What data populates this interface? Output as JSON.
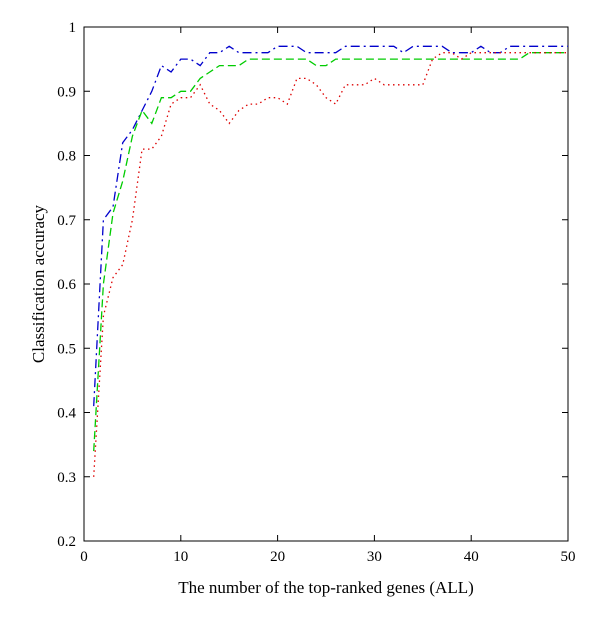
{
  "chart_data": {
    "type": "line",
    "title": "",
    "xlabel": "The number of the top-ranked genes (ALL)",
    "ylabel": "Classification accuracy",
    "xlim": [
      0,
      50
    ],
    "ylim": [
      0.2,
      1.0
    ],
    "xticks": [
      0,
      10,
      20,
      30,
      40,
      50
    ],
    "yticks": [
      0.2,
      0.3,
      0.4,
      0.5,
      0.6,
      0.7,
      0.8,
      0.9,
      1.0
    ],
    "xtick_labels": [
      "0",
      "10",
      "20",
      "30",
      "40",
      "50"
    ],
    "ytick_labels": [
      "0.2",
      "0.3",
      "0.4",
      "0.5",
      "0.6",
      "0.7",
      "0.8",
      "0.9",
      "1"
    ],
    "grid": false,
    "legend": "none",
    "series": [
      {
        "color": "#0000cc",
        "dash": "dash-dot",
        "x": [
          1,
          2,
          3,
          4,
          5,
          6,
          7,
          8,
          9,
          10,
          11,
          12,
          13,
          14,
          15,
          16,
          17,
          18,
          19,
          20,
          21,
          22,
          23,
          24,
          25,
          26,
          27,
          28,
          29,
          30,
          31,
          32,
          33,
          34,
          35,
          36,
          37,
          38,
          39,
          40,
          41,
          42,
          43,
          44,
          45,
          46,
          47,
          48,
          49,
          50
        ],
        "y": [
          0.41,
          0.7,
          0.72,
          0.82,
          0.84,
          0.87,
          0.9,
          0.94,
          0.93,
          0.95,
          0.95,
          0.94,
          0.96,
          0.96,
          0.97,
          0.96,
          0.96,
          0.96,
          0.96,
          0.97,
          0.97,
          0.97,
          0.96,
          0.96,
          0.96,
          0.96,
          0.97,
          0.97,
          0.97,
          0.97,
          0.97,
          0.97,
          0.96,
          0.97,
          0.97,
          0.97,
          0.97,
          0.96,
          0.96,
          0.96,
          0.97,
          0.96,
          0.96,
          0.97,
          0.97,
          0.97,
          0.97,
          0.97,
          0.97,
          0.97
        ]
      },
      {
        "color": "#00cc00",
        "dash": "dashed",
        "x": [
          1,
          2,
          3,
          4,
          5,
          6,
          7,
          8,
          9,
          10,
          11,
          12,
          13,
          14,
          15,
          16,
          17,
          18,
          19,
          20,
          21,
          22,
          23,
          24,
          25,
          26,
          27,
          28,
          29,
          30,
          31,
          32,
          33,
          34,
          35,
          36,
          37,
          38,
          39,
          40,
          41,
          42,
          43,
          44,
          45,
          46,
          47,
          48,
          49,
          50
        ],
        "y": [
          0.34,
          0.6,
          0.71,
          0.76,
          0.83,
          0.87,
          0.85,
          0.89,
          0.89,
          0.9,
          0.9,
          0.92,
          0.93,
          0.94,
          0.94,
          0.94,
          0.95,
          0.95,
          0.95,
          0.95,
          0.95,
          0.95,
          0.95,
          0.94,
          0.94,
          0.95,
          0.95,
          0.95,
          0.95,
          0.95,
          0.95,
          0.95,
          0.95,
          0.95,
          0.95,
          0.95,
          0.95,
          0.95,
          0.95,
          0.95,
          0.95,
          0.95,
          0.95,
          0.95,
          0.95,
          0.96,
          0.96,
          0.96,
          0.96,
          0.96
        ]
      },
      {
        "color": "#dd0000",
        "dash": "dotted",
        "x": [
          1,
          2,
          3,
          4,
          5,
          6,
          7,
          8,
          9,
          10,
          11,
          12,
          13,
          14,
          15,
          16,
          17,
          18,
          19,
          20,
          21,
          22,
          23,
          24,
          25,
          26,
          27,
          28,
          29,
          30,
          31,
          32,
          33,
          34,
          35,
          36,
          37,
          38,
          39,
          40,
          41,
          42,
          43,
          44,
          45,
          46,
          47,
          48,
          49,
          50
        ],
        "y": [
          0.3,
          0.55,
          0.61,
          0.63,
          0.7,
          0.81,
          0.81,
          0.83,
          0.88,
          0.89,
          0.89,
          0.91,
          0.88,
          0.87,
          0.85,
          0.87,
          0.88,
          0.88,
          0.89,
          0.89,
          0.88,
          0.92,
          0.92,
          0.91,
          0.89,
          0.88,
          0.91,
          0.91,
          0.91,
          0.92,
          0.91,
          0.91,
          0.91,
          0.91,
          0.91,
          0.95,
          0.96,
          0.96,
          0.95,
          0.96,
          0.96,
          0.96,
          0.96,
          0.96,
          0.96,
          0.96,
          0.96,
          0.96,
          0.96,
          0.96
        ]
      }
    ]
  }
}
